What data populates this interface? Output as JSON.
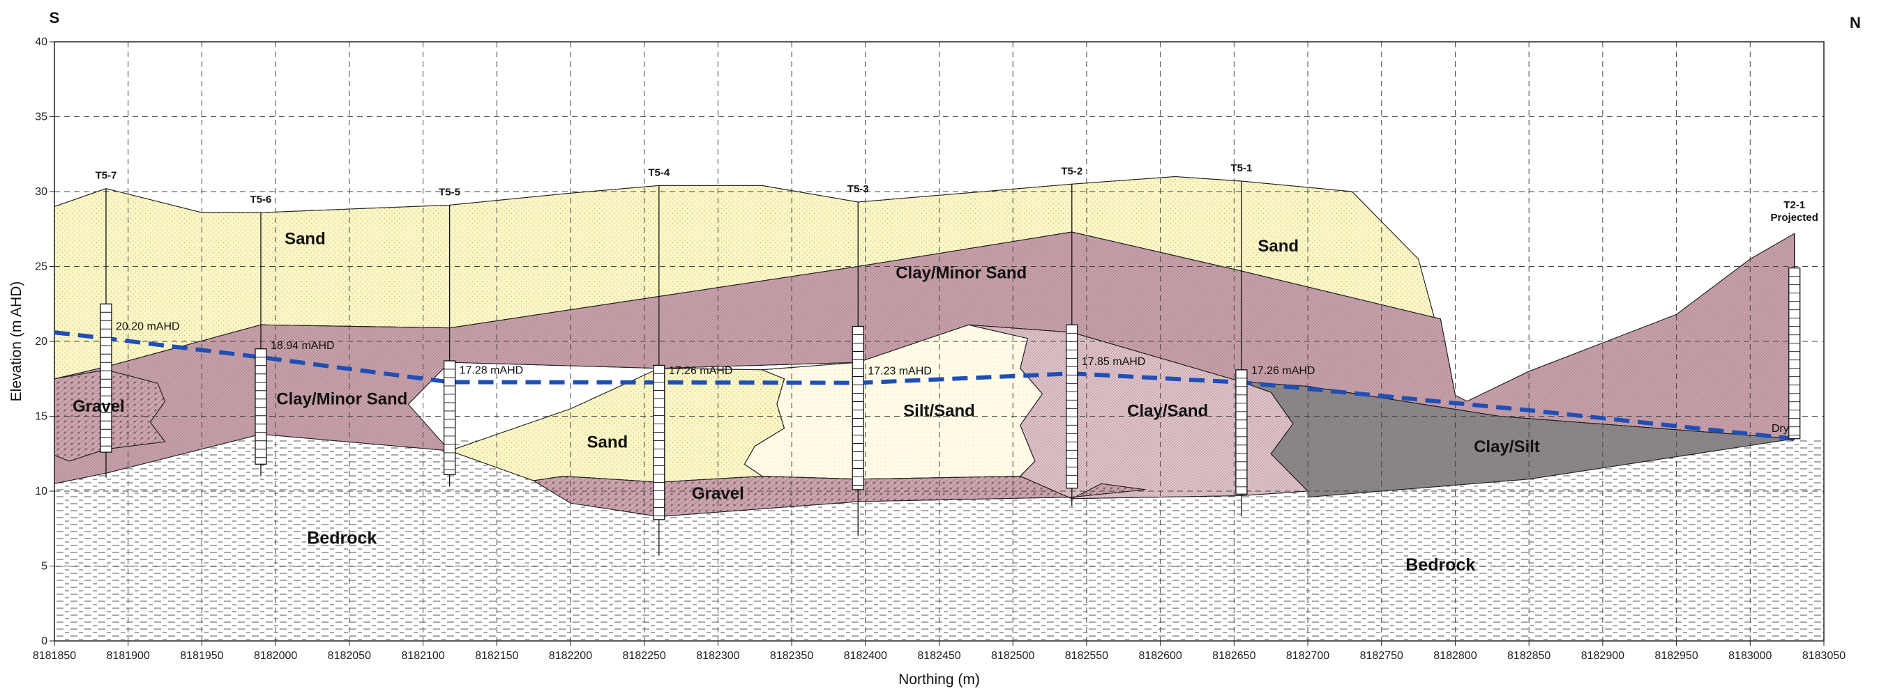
{
  "compass": {
    "left": "S",
    "right": "N"
  },
  "axes": {
    "xlabel": "Northing (m)",
    "ylabel": "Elevation (m AHD)",
    "x_ticks": [
      "8181850",
      "8181900",
      "8181950",
      "8182000",
      "8182050",
      "8182100",
      "8182150",
      "8182200",
      "8182250",
      "8182300",
      "8182350",
      "8182400",
      "8182450",
      "8182500",
      "8182550",
      "8182600",
      "8182650",
      "8182700",
      "8182750",
      "8182800",
      "8182850",
      "8182900",
      "8182950",
      "8183000",
      "8183050"
    ],
    "y_ticks": [
      "0",
      "5",
      "10",
      "15",
      "20",
      "25",
      "30",
      "35",
      "40"
    ],
    "xlim": [
      8181850,
      8183050
    ],
    "ylim": [
      0,
      40
    ]
  },
  "boreholes": [
    {
      "id": "T5-7",
      "label": "T5-7",
      "northing": 8181885,
      "elev_top": 30.2,
      "elev_bottom": 10.9,
      "screen_top": 22.5,
      "screen_bottom": 12.6
    },
    {
      "id": "T5-6",
      "label": "T5-6",
      "northing": 8181990,
      "elev_top": 28.6,
      "elev_bottom": 11.0,
      "screen_top": 19.5,
      "screen_bottom": 11.8
    },
    {
      "id": "T5-5",
      "label": "T5-5",
      "northing": 8182118,
      "elev_top": 29.1,
      "elev_bottom": 10.3,
      "screen_top": 18.7,
      "screen_bottom": 11.1
    },
    {
      "id": "T5-4",
      "label": "T5-4",
      "northing": 8182260,
      "elev_top": 30.4,
      "elev_bottom": 5.7,
      "screen_top": 18.4,
      "screen_bottom": 8.1
    },
    {
      "id": "T5-3",
      "label": "T5-3",
      "northing": 8182395,
      "elev_top": 29.3,
      "elev_bottom": 7.0,
      "screen_top": 21.0,
      "screen_bottom": 10.1
    },
    {
      "id": "T5-2",
      "label": "T5-2",
      "northing": 8182540,
      "elev_top": 30.5,
      "elev_bottom": 9.0,
      "screen_top": 21.1,
      "screen_bottom": 10.2
    },
    {
      "id": "T5-1",
      "label": "T5-1",
      "northing": 8182655,
      "elev_top": 30.7,
      "elev_bottom": 8.3,
      "screen_top": 18.1,
      "screen_bottom": 9.8
    },
    {
      "id": "T2-1",
      "label": "T2-1",
      "sublabel": "Projected",
      "northing": 8183030,
      "elev_top": 27.2,
      "elev_bottom": 13.5,
      "screen_top": 24.9,
      "screen_bottom": 13.5
    }
  ],
  "water_levels": [
    {
      "label": "20.20 mAHD",
      "northing": 8181885,
      "elev": 20.2
    },
    {
      "label": "18.94 mAHD",
      "northing": 8181990,
      "elev": 18.94
    },
    {
      "label": "17.28 mAHD",
      "northing": 8182118,
      "elev": 17.28
    },
    {
      "label": "17.26 mAHD",
      "northing": 8182260,
      "elev": 17.26
    },
    {
      "label": "17.23 mAHD",
      "northing": 8182395,
      "elev": 17.23
    },
    {
      "label": "17.85 mAHD",
      "northing": 8182540,
      "elev": 17.85
    },
    {
      "label": "17.26 mAHD",
      "northing": 8182655,
      "elev": 17.26
    },
    {
      "label": "Dry",
      "northing": 8183030,
      "elev": 13.5
    }
  ],
  "water_table_line": [
    [
      8181850,
      20.6
    ],
    [
      8181885,
      20.2
    ],
    [
      8181990,
      18.94
    ],
    [
      8182118,
      17.28
    ],
    [
      8182260,
      17.26
    ],
    [
      8182395,
      17.23
    ],
    [
      8182540,
      17.85
    ],
    [
      8182655,
      17.26
    ],
    [
      8182850,
      15.4
    ],
    [
      8183030,
      13.5
    ]
  ],
  "units": [
    {
      "name": "Sand",
      "label": "Sand",
      "color": "#fbf6c6",
      "pattern": "dots",
      "label_at": [
        8182020,
        26.5
      ],
      "label_size": 24,
      "polygon": [
        [
          8181850,
          29.0
        ],
        [
          8181885,
          30.2
        ],
        [
          8181950,
          28.6
        ],
        [
          8181990,
          28.6
        ],
        [
          8182118,
          29.1
        ],
        [
          8182200,
          29.9
        ],
        [
          8182260,
          30.4
        ],
        [
          8182330,
          30.4
        ],
        [
          8182395,
          29.3
        ],
        [
          8182480,
          30.0
        ],
        [
          8182540,
          30.5
        ],
        [
          8182610,
          31.0
        ],
        [
          8182655,
          30.7
        ],
        [
          8182730,
          30.0
        ],
        [
          8182775,
          25.5
        ],
        [
          8182800,
          16.4
        ],
        [
          8182790,
          21.5
        ],
        [
          8182655,
          24.7
        ],
        [
          8182540,
          27.3
        ],
        [
          8182395,
          25.0
        ],
        [
          8182260,
          23.0
        ],
        [
          8182118,
          20.9
        ],
        [
          8181990,
          21.1
        ],
        [
          8181885,
          18.3
        ],
        [
          8181850,
          17.5
        ]
      ]
    },
    {
      "name": "Clay/Minor Sand",
      "label": "Clay/Minor Sand",
      "color": "#cba3ad",
      "pattern": "fine",
      "label_at": [
        8182465,
        24.2
      ],
      "label_size": 24,
      "second_label_at": [
        8182045,
        15.8
      ],
      "polygon": [
        [
          8181850,
          17.5
        ],
        [
          8181885,
          18.3
        ],
        [
          8181990,
          21.1
        ],
        [
          8182118,
          20.9
        ],
        [
          8182260,
          23.0
        ],
        [
          8182395,
          25.0
        ],
        [
          8182540,
          27.3
        ],
        [
          8182655,
          24.7
        ],
        [
          8182790,
          21.5
        ],
        [
          8182800,
          16.4
        ],
        [
          8182808,
          16.0
        ],
        [
          8182850,
          18.0
        ],
        [
          8182950,
          21.8
        ],
        [
          8183000,
          25.5
        ],
        [
          8183030,
          27.2
        ],
        [
          8183030,
          13.5
        ],
        [
          8182830,
          15.0
        ],
        [
          8182700,
          17.0
        ],
        [
          8182655,
          17.3
        ],
        [
          8182540,
          20.6
        ],
        [
          8182470,
          21.1
        ],
        [
          8182395,
          18.6
        ],
        [
          8182260,
          18.2
        ],
        [
          8182118,
          18.6
        ],
        [
          8182090,
          15.8
        ],
        [
          8182118,
          12.7
        ],
        [
          8181990,
          13.8
        ],
        [
          8181885,
          11.2
        ],
        [
          8181850,
          10.5
        ]
      ]
    },
    {
      "name": "Gravel upper-left",
      "label": "Gravel",
      "color": "#cba3ad",
      "pattern": "gravel",
      "label_at": [
        8181880,
        15.3
      ],
      "label_size": 24,
      "polygon": [
        [
          8181850,
          17.5
        ],
        [
          8181885,
          18.1
        ],
        [
          8181920,
          17.2
        ],
        [
          8181925,
          16.0
        ],
        [
          8181915,
          14.6
        ],
        [
          8181925,
          13.3
        ],
        [
          8181885,
          12.8
        ],
        [
          8181860,
          12.0
        ],
        [
          8181850,
          12.4
        ]
      ]
    },
    {
      "name": "Sand lower",
      "label": "Sand",
      "color": "#fbf6c6",
      "pattern": "dots",
      "label_at": [
        8182225,
        12.9
      ],
      "label_size": 24,
      "polygon": [
        [
          8182118,
          12.7
        ],
        [
          8182200,
          15.5
        ],
        [
          8182260,
          18.2
        ],
        [
          8182330,
          18.1
        ],
        [
          8182345,
          17.5
        ],
        [
          8182340,
          15.8
        ],
        [
          8182345,
          14.2
        ],
        [
          8182325,
          13.0
        ],
        [
          8182318,
          11.8
        ],
        [
          8182330,
          11.0
        ],
        [
          8182260,
          10.6
        ],
        [
          8182195,
          11.0
        ],
        [
          8182175,
          10.7
        ]
      ]
    },
    {
      "name": "Silt/Sand",
      "label": "Silt/Sand",
      "color": "#fffbe6",
      "pattern": "light",
      "label_at": [
        8182450,
        15.0
      ],
      "label_size": 24,
      "polygon": [
        [
          8182330,
          18.1
        ],
        [
          8182395,
          18.6
        ],
        [
          8182470,
          21.1
        ],
        [
          8182510,
          20.2
        ],
        [
          8182505,
          18.2
        ],
        [
          8182520,
          16.5
        ],
        [
          8182505,
          14.4
        ],
        [
          8182515,
          12.0
        ],
        [
          8182505,
          11.0
        ],
        [
          8182395,
          10.8
        ],
        [
          8182330,
          11.0
        ],
        [
          8182318,
          11.8
        ],
        [
          8182325,
          13.0
        ],
        [
          8182345,
          14.2
        ],
        [
          8182340,
          15.8
        ],
        [
          8182345,
          17.5
        ]
      ]
    },
    {
      "name": "Clay/Sand",
      "label": "Clay/Sand",
      "color": "#e3c6cc",
      "pattern": "fine",
      "label_at": [
        8182605,
        15.0
      ],
      "label_size": 24,
      "polygon": [
        [
          8182470,
          21.1
        ],
        [
          8182540,
          20.6
        ],
        [
          8182655,
          17.3
        ],
        [
          8182675,
          16.6
        ],
        [
          8182690,
          14.5
        ],
        [
          8182675,
          12.5
        ],
        [
          8182700,
          10.0
        ],
        [
          8182655,
          9.7
        ],
        [
          8182540,
          9.5
        ],
        [
          8182505,
          11.0
        ],
        [
          8182515,
          12.0
        ],
        [
          8182505,
          14.4
        ],
        [
          8182520,
          16.5
        ],
        [
          8182505,
          18.2
        ],
        [
          8182510,
          20.2
        ]
      ]
    },
    {
      "name": "Clay/Silt",
      "label": "Clay/Silt",
      "color": "#8c8a8c",
      "pattern": "fine",
      "label_at": [
        8182835,
        12.6
      ],
      "label_size": 24,
      "polygon": [
        [
          8182655,
          17.3
        ],
        [
          8182700,
          17.0
        ],
        [
          8182830,
          15.0
        ],
        [
          8183030,
          13.5
        ],
        [
          8182930,
          12.0
        ],
        [
          8182850,
          10.8
        ],
        [
          8182700,
          9.6
        ],
        [
          8182700,
          10.0
        ],
        [
          8182675,
          12.5
        ],
        [
          8182690,
          14.5
        ],
        [
          8182675,
          16.6
        ]
      ]
    },
    {
      "name": "Gravel lower",
      "label": "Gravel",
      "color": "#cba3ad",
      "pattern": "gravel",
      "label_at": [
        8182300,
        9.5
      ],
      "label_size": 24,
      "polygon": [
        [
          8182175,
          10.7
        ],
        [
          8182195,
          11.0
        ],
        [
          8182260,
          10.6
        ],
        [
          8182330,
          11.0
        ],
        [
          8182395,
          10.8
        ],
        [
          8182505,
          11.0
        ],
        [
          8182540,
          9.5
        ],
        [
          8182560,
          10.5
        ],
        [
          8182590,
          10.1
        ],
        [
          8182540,
          9.6
        ],
        [
          8182395,
          9.3
        ],
        [
          8182260,
          8.3
        ],
        [
          8182200,
          9.2
        ]
      ]
    },
    {
      "name": "Bedrock",
      "label": "Bedrock",
      "color": "#ffffff",
      "pattern": "dashes",
      "label_at": [
        8182045,
        6.5
      ],
      "label_size": 25,
      "second_label_at": [
        8182790,
        4.7
      ],
      "polygon": []
    }
  ]
}
